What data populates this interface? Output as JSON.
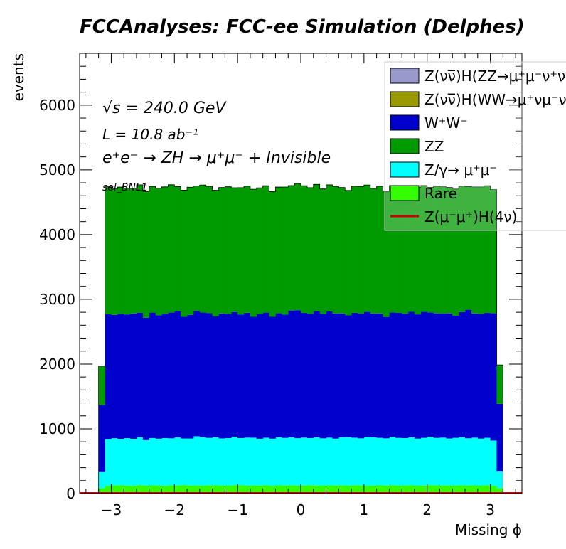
{
  "chart_data": {
    "type": "bar",
    "stacked": true,
    "title": "FCCAnalyses: FCC-ee Simulation (Delphes)",
    "xlabel": "Missing ϕ",
    "ylabel": "events",
    "xlim": [
      -3.5,
      3.5
    ],
    "ylim": [
      0,
      6800
    ],
    "x_ticks": [
      "−3",
      "−2",
      "−1",
      "0",
      "1",
      "2",
      "3"
    ],
    "y_ticks": [
      "0",
      "1000",
      "2000",
      "3000",
      "4000",
      "5000",
      "6000"
    ],
    "bins": {
      "n": 64,
      "low": -3.2,
      "high": 3.2
    },
    "annotations": {
      "energy": "√s = 240.0 GeV",
      "lumi": "L = 10.8 ab⁻¹",
      "process": "e⁺e⁻ → ZH → μ⁺μ⁻ + Invisible",
      "selection": "sel_BNL1"
    },
    "legend_position": "top-right",
    "series": [
      {
        "name": "Rare",
        "label": "Rare",
        "color": "#33ff00",
        "values": [
          82,
          120,
          125,
          127,
          122,
          118,
          130,
          121,
          126,
          124,
          119,
          127,
          123,
          131,
          122,
          125,
          120,
          128,
          126,
          124,
          121,
          129,
          127,
          122,
          125,
          123,
          128,
          120,
          126,
          124,
          127,
          122,
          125,
          129,
          123,
          121,
          126,
          124,
          128,
          122,
          127,
          125,
          120,
          124,
          126,
          123,
          129,
          122,
          125,
          127,
          121,
          124,
          128,
          126,
          123,
          125,
          122,
          127,
          124,
          126,
          121,
          128,
          119,
          84
        ]
      },
      {
        "name": "Z/γ→μ⁺μ⁻",
        "label": "Z/γ→ μ⁺μ⁻",
        "color": "#00ffff",
        "values": [
          250,
          720,
          730,
          715,
          735,
          728,
          740,
          705,
          732,
          724,
          738,
          726,
          744,
          720,
          728,
          760,
          750,
          732,
          744,
          728,
          736,
          749,
          730,
          742,
          738,
          724,
          735,
          728,
          745,
          736,
          742,
          733,
          740,
          728,
          747,
          732,
          738,
          725,
          742,
          750,
          736,
          728,
          758,
          744,
          735,
          730,
          746,
          738,
          732,
          743,
          728,
          737,
          749,
          734,
          741,
          726,
          739,
          744,
          730,
          738,
          728,
          734,
          700,
          255
        ]
      },
      {
        "name": "W⁺W⁻",
        "label": "W⁺W⁻",
        "color": "#0000cc",
        "values": [
          1038,
          1928,
          1905,
          1932,
          1908,
          1935,
          1924,
          1890,
          1937,
          1905,
          1918,
          1942,
          1950,
          1880,
          1910,
          1935,
          1926,
          1925,
          1865,
          1928,
          1915,
          1925,
          1908,
          1928,
          1867,
          1925,
          1932,
          1882,
          1913,
          1905,
          1958,
          1975,
          1925,
          1918,
          1947,
          1922,
          1950,
          1931,
          1912,
          1880,
          1928,
          1925,
          1928,
          1912,
          1920,
          1875,
          1922,
          1930,
          1920,
          1937,
          1918,
          1947,
          1920,
          1923,
          1915,
          1932,
          1885,
          1932,
          1985,
          1917,
          1925,
          1928,
          1965,
          1048
        ]
      },
      {
        "name": "ZZ",
        "label": "ZZ",
        "color": "#009900",
        "values": [
          600,
          1970,
          1945,
          1960,
          1955,
          1938,
          1975,
          1950,
          1948,
          1965,
          1962,
          1975,
          1925,
          1955,
          1972,
          1930,
          1970,
          1960,
          1950,
          1948,
          1966,
          1920,
          1960,
          1955,
          1970,
          1950,
          1960,
          1935,
          1950,
          1970,
          1930,
          1960,
          1965,
          1950,
          1958,
          1930,
          1955,
          1965,
          1945,
          1930,
          1956,
          1965,
          1960,
          1935,
          1966,
          1940,
          1960,
          1955,
          1952,
          1945,
          1965,
          1950,
          1933,
          1965,
          1960,
          1948,
          1958,
          1945,
          1902,
          1955,
          1962,
          1965,
          1911,
          600
        ]
      }
    ],
    "legend": [
      {
        "label": "Z(νν̅)H(ZZ→μ⁺μ⁻ν⁺ν⁻)",
        "color": "#9999cc",
        "style": "box"
      },
      {
        "label": "Z(νν̅)H(WW→μ⁺νμ⁻ν)",
        "color": "#999900",
        "style": "box"
      },
      {
        "label": "W⁺W⁻",
        "color": "#0000cc",
        "style": "box"
      },
      {
        "label": "ZZ",
        "color": "#009900",
        "style": "box"
      },
      {
        "label": "Z/γ→ μ⁺μ⁻",
        "color": "#00ffff",
        "style": "box"
      },
      {
        "label": "Rare",
        "color": "#33ff00",
        "style": "box"
      },
      {
        "label": "Z(μ⁻μ⁺)H(4ν)",
        "color": "#cc0000",
        "style": "line"
      }
    ]
  }
}
